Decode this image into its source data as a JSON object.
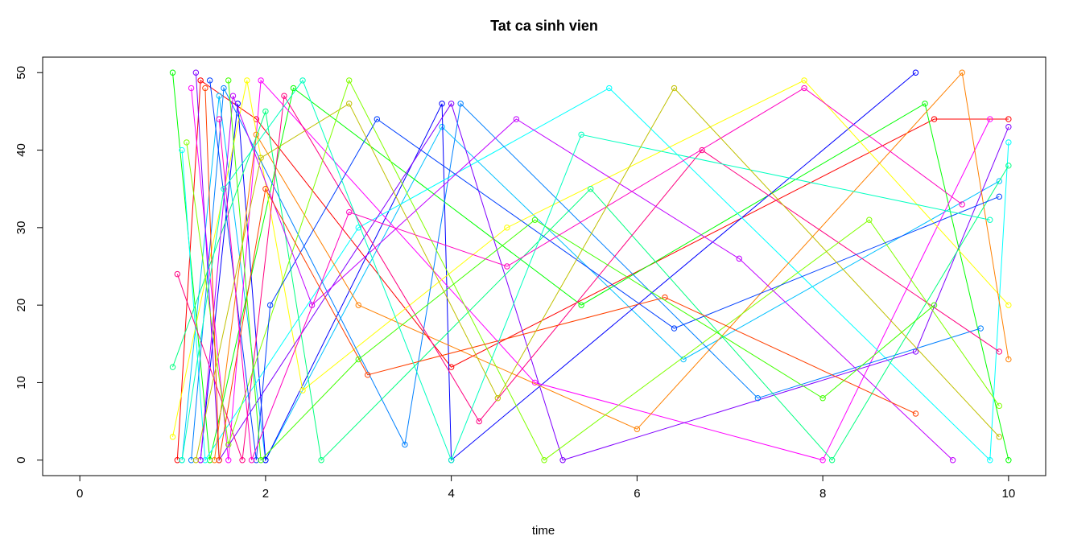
{
  "chart_data": {
    "type": "line",
    "title": "Tat ca sinh vien",
    "xlabel": "time",
    "ylabel": "",
    "xlim": [
      -0.4,
      10.4
    ],
    "ylim": [
      -2,
      52
    ],
    "x_ticks": [
      0,
      2,
      4,
      6,
      8,
      10
    ],
    "y_ticks": [
      0,
      10,
      20,
      30,
      40,
      50
    ],
    "x_tick_labels": [
      "0",
      "2",
      "4",
      "6",
      "8",
      "10"
    ],
    "y_tick_labels": [
      "0",
      "10",
      "20",
      "30",
      "40",
      "50"
    ],
    "grid": false,
    "legend": "none",
    "marker": "open-circle",
    "palette": [
      "#ff0000",
      "#ff6600",
      "#ffcc00",
      "#ccff00",
      "#66ff00",
      "#00ff00",
      "#00ff66",
      "#00ffcc",
      "#00ccff",
      "#0066ff",
      "#0000ff",
      "#6600ff",
      "#cc00ff",
      "#ff00cc",
      "#ff0066"
    ],
    "series": [
      {
        "color": "#ff0000",
        "x": [
          1.05,
          1.3,
          1.9,
          4.0,
          9.2,
          10.0
        ],
        "y": [
          0,
          49,
          44,
          12,
          44,
          44
        ]
      },
      {
        "color": "#00c0ff",
        "x": [
          1.1,
          1.5,
          2.0,
          3.9,
          6.5,
          9.9
        ],
        "y": [
          0,
          47,
          0,
          43,
          13,
          36
        ]
      },
      {
        "color": "#00ff00",
        "x": [
          1.0,
          1.4,
          2.3,
          5.4,
          9.1,
          10.0
        ],
        "y": [
          50,
          0,
          48,
          20,
          46,
          0
        ]
      },
      {
        "color": "#0000ff",
        "x": [
          1.3,
          1.7,
          2.0,
          3.9,
          4.0,
          9.0
        ],
        "y": [
          0,
          46,
          0,
          46,
          0,
          50
        ]
      },
      {
        "color": "#ff00ff",
        "x": [
          1.2,
          1.6,
          1.95,
          4.9,
          8.0,
          9.8
        ],
        "y": [
          48,
          0,
          49,
          10,
          0,
          44
        ]
      },
      {
        "color": "#ffff00",
        "x": [
          1.0,
          1.8,
          2.4,
          4.6,
          7.8,
          10.0
        ],
        "y": [
          3,
          49,
          9,
          30,
          49,
          20
        ]
      },
      {
        "color": "#00ffff",
        "x": [
          1.1,
          1.35,
          3.0,
          5.7,
          9.8,
          10.0
        ],
        "y": [
          40,
          0,
          30,
          48,
          0,
          41
        ]
      },
      {
        "color": "#8000ff",
        "x": [
          1.25,
          1.5,
          4.0,
          5.2,
          9.0,
          10.0
        ],
        "y": [
          50,
          0,
          46,
          0,
          14,
          43
        ]
      },
      {
        "color": "#ff8000",
        "x": [
          1.45,
          1.9,
          3.0,
          6.0,
          9.5,
          10.0
        ],
        "y": [
          0,
          42,
          20,
          4,
          50,
          13
        ]
      },
      {
        "color": "#00ff80",
        "x": [
          1.0,
          2.0,
          2.6,
          5.5,
          8.1,
          10.0
        ],
        "y": [
          12,
          45,
          0,
          35,
          0,
          38
        ]
      },
      {
        "color": "#0080ff",
        "x": [
          1.2,
          1.55,
          3.5,
          4.1,
          7.3,
          9.7
        ],
        "y": [
          0,
          48,
          2,
          46,
          8,
          17
        ]
      },
      {
        "color": "#ff0080",
        "x": [
          1.05,
          1.75,
          2.2,
          4.3,
          6.7,
          9.9
        ],
        "y": [
          24,
          0,
          47,
          5,
          40,
          14
        ]
      },
      {
        "color": "#80ff00",
        "x": [
          1.15,
          1.6,
          2.9,
          5.0,
          8.5,
          9.9
        ],
        "y": [
          41,
          2,
          49,
          0,
          31,
          7
        ]
      },
      {
        "color": "#0040ff",
        "x": [
          1.4,
          1.9,
          2.05,
          3.2,
          6.4,
          9.9
        ],
        "y": [
          49,
          0,
          20,
          44,
          17,
          34
        ]
      },
      {
        "color": "#c000ff",
        "x": [
          1.3,
          1.65,
          2.5,
          4.7,
          7.1,
          9.4
        ],
        "y": [
          0,
          47,
          20,
          44,
          26,
          0
        ]
      },
      {
        "color": "#ff4000",
        "x": [
          1.35,
          1.5,
          2.0,
          3.1,
          6.3,
          9.0
        ],
        "y": [
          48,
          0,
          35,
          11,
          21,
          6
        ]
      },
      {
        "color": "#40ff00",
        "x": [
          1.6,
          1.95,
          3.0,
          4.9,
          8.0,
          9.2
        ],
        "y": [
          49,
          0,
          13,
          31,
          8,
          20
        ]
      },
      {
        "color": "#00ffc0",
        "x": [
          1.1,
          1.55,
          2.4,
          4.0,
          5.4,
          9.8
        ],
        "y": [
          0,
          35,
          49,
          0,
          42,
          31
        ]
      },
      {
        "color": "#ff00c0",
        "x": [
          1.5,
          1.85,
          2.9,
          4.6,
          7.8,
          9.5
        ],
        "y": [
          44,
          0,
          32,
          25,
          48,
          33
        ]
      },
      {
        "color": "#c0c000",
        "x": [
          1.25,
          1.95,
          2.9,
          4.5,
          6.4,
          9.9
        ],
        "y": [
          0,
          39,
          46,
          8,
          48,
          3
        ]
      }
    ]
  }
}
